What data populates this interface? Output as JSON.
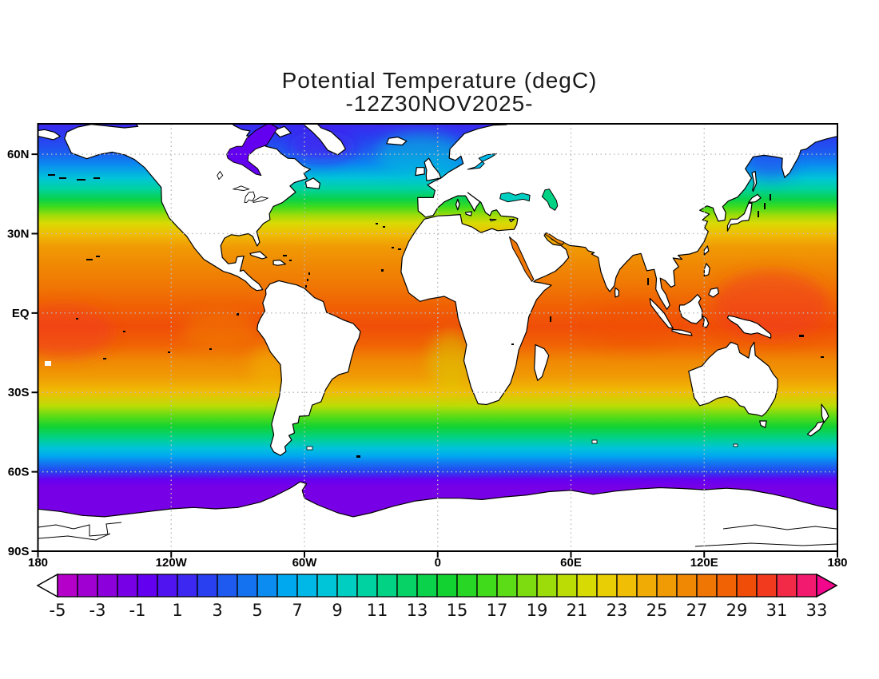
{
  "chart_data": {
    "type": "heatmap",
    "title": "Potential Temperature (degC)",
    "subtitle": "-12Z30NOV2025-",
    "variable": "Potential Temperature",
    "units": "degC",
    "valid_time": "12Z 30 NOV 2025",
    "projection": "global equirectangular lat/lon, 180W to 180E, 90S to ~72N",
    "grid": "dotted graticule, 30 deg latitude / 60 deg longitude",
    "x_axis": {
      "ticks": [
        "180",
        "120W",
        "60W",
        "0",
        "60E",
        "120E",
        "180"
      ]
    },
    "y_axis": {
      "ticks": [
        "60N",
        "30N",
        "EQ",
        "30S",
        "60S",
        "90S"
      ]
    },
    "colorbar": {
      "min": -5,
      "max": 33,
      "cell_interval_degC": 1,
      "label_interval_degC": 2,
      "labels": [
        "-5",
        "-3",
        "-1",
        "1",
        "3",
        "5",
        "7",
        "9",
        "11",
        "13",
        "15",
        "17",
        "19",
        "21",
        "23",
        "25",
        "27",
        "29",
        "31",
        "33"
      ],
      "colors": [
        "#B400C8",
        "#A000D2",
        "#8C00DC",
        "#7800E6",
        "#6400F0",
        "#5014F0",
        "#3C28F0",
        "#2840F0",
        "#1E5AF0",
        "#1472F0",
        "#0A8CF0",
        "#00A8F0",
        "#00B8E8",
        "#00C4D8",
        "#00CEC0",
        "#00D2A2",
        "#02D284",
        "#06D266",
        "#0AD24A",
        "#12D232",
        "#28D726",
        "#40DC1C",
        "#5CDC16",
        "#7CDC10",
        "#9CDC0A",
        "#BCDC06",
        "#D8DA04",
        "#E8CE04",
        "#F0BE04",
        "#F0AC04",
        "#F09A04",
        "#F08804",
        "#F07604",
        "#F06204",
        "#F04E08",
        "#F23A1E",
        "#F22A48",
        "#F21A6E"
      ],
      "left_arrow_color": "#FFFFFF",
      "right_arrow_color": "#F2068C"
    },
    "zonal_mean_degC": [
      [
        71.5,
        1
      ],
      [
        66,
        2
      ],
      [
        61,
        3.5
      ],
      [
        56,
        5.5
      ],
      [
        51,
        8
      ],
      [
        47,
        10.5
      ],
      [
        43,
        13.5
      ],
      [
        40,
        16
      ],
      [
        37,
        19
      ],
      [
        34,
        21.5
      ],
      [
        30,
        23.5
      ],
      [
        25,
        25.5
      ],
      [
        18,
        26.5
      ],
      [
        10,
        27.5
      ],
      [
        3,
        28.5
      ],
      [
        -5,
        29
      ],
      [
        -12,
        28
      ],
      [
        -18,
        26.5
      ],
      [
        -24,
        25
      ],
      [
        -30,
        23
      ],
      [
        -35,
        20.5
      ],
      [
        -39,
        17.5
      ],
      [
        -43,
        14.5
      ],
      [
        -47,
        11.5
      ],
      [
        -51,
        8.5
      ],
      [
        -54,
        6.5
      ],
      [
        -57,
        4
      ],
      [
        -60,
        2
      ],
      [
        -63,
        -0.5
      ],
      [
        -66,
        -1.5
      ],
      [
        -90,
        -1.5
      ]
    ],
    "features": [
      {
        "name": "west-pacific-warm-pool",
        "lon": 150,
        "lat": 3,
        "rlon": 26,
        "rlat": 13,
        "temp_c": 30,
        "opacity": 0.5
      },
      {
        "name": "central-pacific-warm-band",
        "lon": -168,
        "lat": -7,
        "rlon": 22,
        "rlat": 10,
        "temp_c": 30,
        "opacity": 0.45
      },
      {
        "name": "indian-ocean-warm-pool",
        "lon": 87,
        "lat": -4,
        "rlon": 17,
        "rlat": 9,
        "temp_c": 29.5,
        "opacity": 0.4
      },
      {
        "name": "east-pacific-cool-tongue",
        "lon": -98,
        "lat": -7,
        "rlon": 17,
        "rlat": 7,
        "temp_c": 26,
        "opacity": 0.45
      },
      {
        "name": "peru-coastal-cool",
        "lon": -76,
        "lat": -20,
        "rlon": 8,
        "rlat": 9,
        "temp_c": 23,
        "opacity": 0.4
      },
      {
        "name": "benguela-coastal-cool",
        "lon": 6,
        "lat": -18,
        "rlon": 10,
        "rlat": 11,
        "temp_c": 21,
        "opacity": 0.45
      },
      {
        "name": "subpolar-north-atlantic-cold",
        "lon": -52,
        "lat": 63,
        "rlon": 15,
        "rlat": 6,
        "temp_c": 0.5,
        "opacity": 0.55
      },
      {
        "name": "northeast-atlantic-warm",
        "lon": -8,
        "lat": 60,
        "rlon": 20,
        "rlat": 8,
        "temp_c": 8,
        "opacity": 0.55
      },
      {
        "name": "sea-of-okhotsk-cold",
        "lon": 150,
        "lat": 56,
        "rlon": 11,
        "rlat": 5.5,
        "temp_c": 2.5,
        "opacity": 0.5
      }
    ],
    "inland_seas": [
      {
        "name": "hudson-bay",
        "temp_c": -1
      },
      {
        "name": "baltic-sea",
        "temp_c": 7.5
      },
      {
        "name": "black-sea",
        "temp_c": 9
      },
      {
        "name": "caspian-sea",
        "temp_c": 11
      },
      {
        "name": "red-sea",
        "temp_c": 27
      },
      {
        "name": "persian-gulf",
        "temp_c": 26
      }
    ]
  },
  "style": {
    "grid_color": "#BBBBBB",
    "frame_color": "#000000",
    "land_color": "#FFFFFF",
    "coast_color": "#000000",
    "text_color": "#111111"
  }
}
